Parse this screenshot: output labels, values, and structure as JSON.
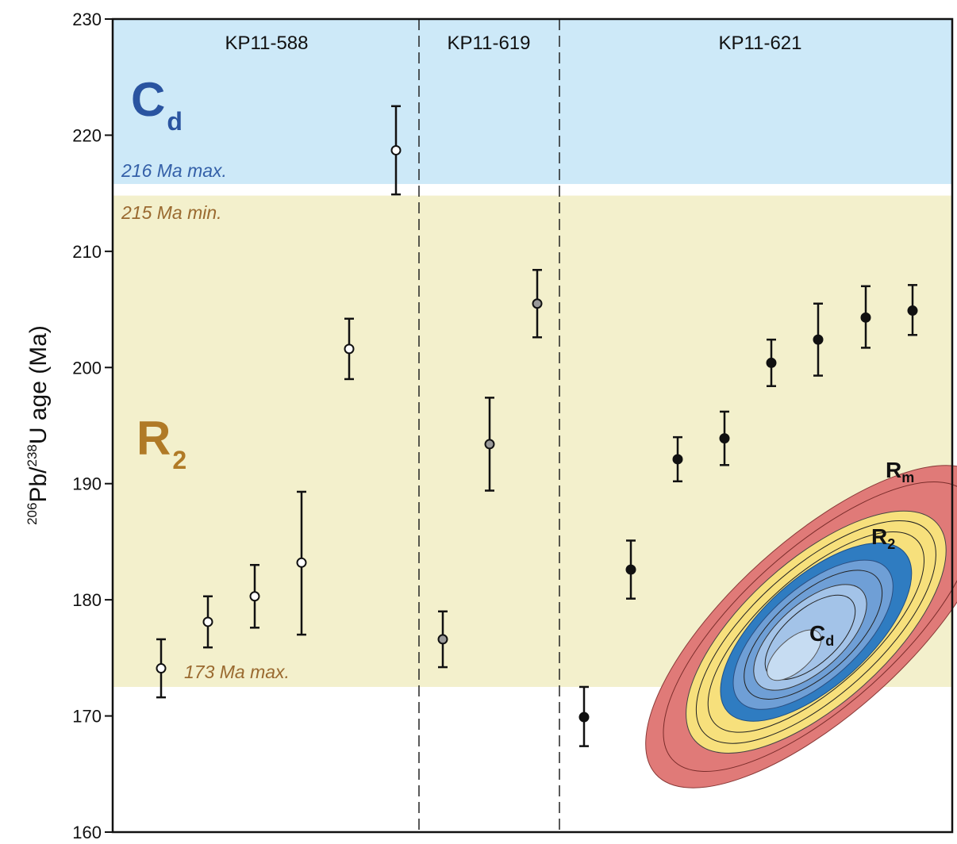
{
  "chart_data": {
    "type": "scatter",
    "ylabel": {
      "sup1": "206",
      "t1": "Pb/",
      "sup2": "238",
      "t2": "U age (Ma)"
    },
    "ylim": [
      160,
      230
    ],
    "yticks": [
      "160",
      "170",
      "180",
      "190",
      "200",
      "210",
      "220",
      "230"
    ],
    "bands": [
      {
        "zone": "C",
        "zone_sub": "d",
        "from": 215.8,
        "to": 230,
        "color": "#cde9f8",
        "label_color": "#2a54a0",
        "note": "216 Ma max.",
        "note_color": "#3460a8"
      },
      {
        "zone": "R",
        "zone_sub": "2",
        "from": 172.5,
        "to": 214.8,
        "color": "#f3f0cc",
        "label_color": "#b07a26",
        "note_top": "215 Ma min.",
        "note_bottom": "173 Ma max.",
        "note_color": "#9a6a30"
      }
    ],
    "groups": [
      "KP11-588",
      "KP11-619",
      "KP11-621"
    ],
    "series": [
      {
        "name": "KP11-588",
        "marker": "open",
        "values": [
          [
            174.1,
            171.6,
            176.6
          ],
          [
            178.1,
            175.9,
            180.3
          ],
          [
            180.3,
            177.6,
            183.0
          ],
          [
            183.2,
            177.0,
            189.3
          ],
          [
            201.6,
            199.0,
            204.2
          ],
          [
            218.7,
            214.9,
            222.5
          ]
        ]
      },
      {
        "name": "KP11-619",
        "marker": "grey",
        "values": [
          [
            176.6,
            174.2,
            179.0
          ],
          [
            193.4,
            189.4,
            197.4
          ],
          [
            205.5,
            202.6,
            208.4
          ]
        ]
      },
      {
        "name": "KP11-621",
        "marker": "filled",
        "values": [
          [
            169.9,
            167.4,
            172.5
          ],
          [
            182.6,
            180.1,
            185.1
          ],
          [
            192.1,
            190.2,
            194.0
          ],
          [
            193.9,
            191.6,
            196.2
          ],
          [
            200.4,
            198.4,
            202.4
          ],
          [
            202.4,
            199.3,
            205.5
          ],
          [
            204.3,
            201.7,
            207.0
          ],
          [
            204.9,
            202.8,
            207.1
          ]
        ]
      }
    ],
    "inset": {
      "labels": [
        {
          "main": "R",
          "sub": "m"
        },
        {
          "main": "R",
          "sub": "2"
        },
        {
          "main": "C",
          "sub": "d"
        }
      ],
      "colors": {
        "rim": "#e07a78",
        "r2": "#f7e07c",
        "dark_blue": "#2f7cc1",
        "mid_blue": "#6f9fd6",
        "light_blue": "#a3c3e8",
        "pale": "#c6dcf2"
      }
    }
  }
}
